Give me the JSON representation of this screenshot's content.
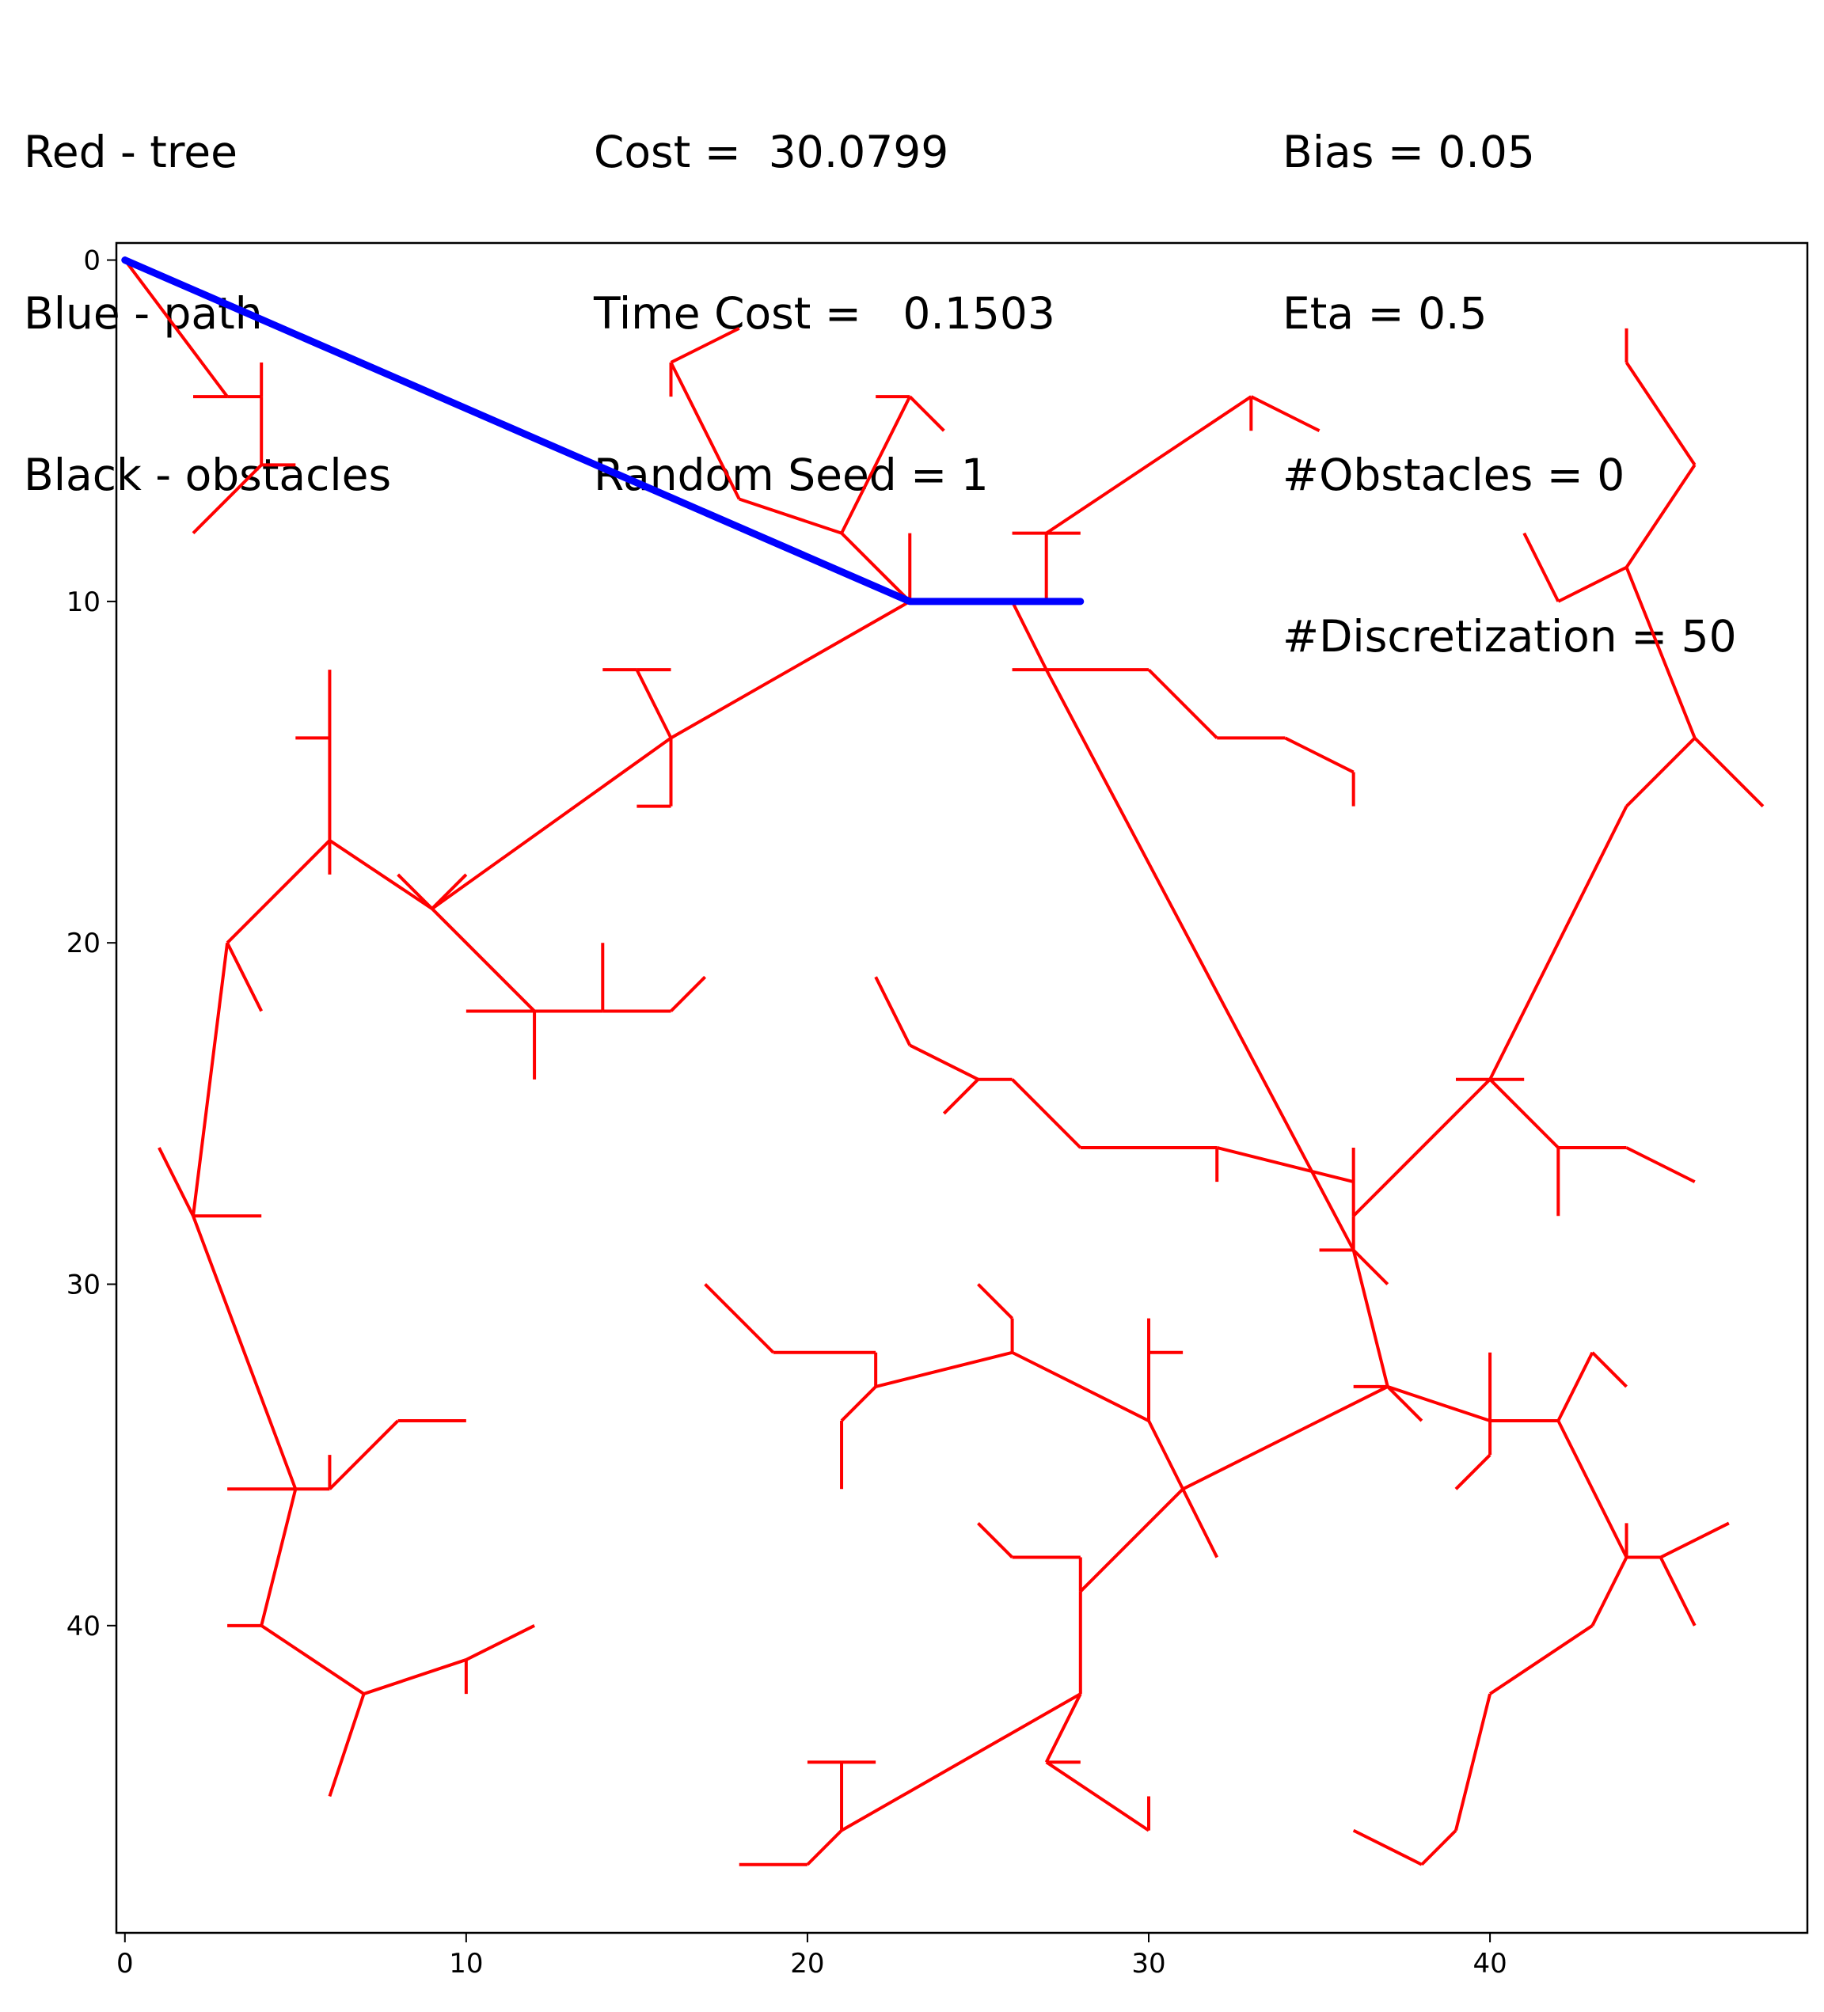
{
  "header": {
    "legend_lines": [
      "Red - tree",
      "Blue - path",
      "Black - obstacles"
    ],
    "stats_lines": [
      "Cost =  30.0799",
      "Time Cost =   0.1503",
      "Random Seed = 1"
    ],
    "params_lines": [
      "Bias = 0.05",
      "Eta = 0.5",
      "#Obstacles = 0",
      "#Discretization = 50"
    ]
  },
  "chart_data": {
    "type": "line",
    "title": "",
    "xlabel": "",
    "ylabel": "",
    "xlim": [
      -0.25,
      49.3
    ],
    "ylim": [
      49,
      -0.5
    ],
    "y_inverted": true,
    "grid": false,
    "xticks": [
      0,
      10,
      20,
      30,
      40
    ],
    "yticks": [
      0,
      10,
      20,
      30,
      40
    ],
    "colors": {
      "tree": "#ff0000",
      "path": "#0000ff",
      "obstacles": "#000000"
    },
    "obstacles": [],
    "path": [
      [
        0,
        0
      ],
      [
        23,
        10
      ],
      [
        28,
        10
      ]
    ],
    "tree_segments": [
      [
        [
          0,
          0
        ],
        [
          3,
          4
        ]
      ],
      [
        [
          3,
          4
        ],
        [
          2,
          4
        ]
      ],
      [
        [
          3,
          4
        ],
        [
          4,
          4
        ]
      ],
      [
        [
          4,
          4
        ],
        [
          4,
          3
        ]
      ],
      [
        [
          4,
          4
        ],
        [
          4,
          6
        ]
      ],
      [
        [
          4,
          6
        ],
        [
          5,
          6
        ]
      ],
      [
        [
          4,
          6
        ],
        [
          2,
          8
        ]
      ],
      [
        [
          23,
          10
        ],
        [
          21,
          8
        ]
      ],
      [
        [
          21,
          8
        ],
        [
          18,
          7
        ]
      ],
      [
        [
          18,
          7
        ],
        [
          16,
          3
        ]
      ],
      [
        [
          16,
          3
        ],
        [
          16,
          4
        ]
      ],
      [
        [
          16,
          3
        ],
        [
          18,
          2
        ]
      ],
      [
        [
          21,
          8
        ],
        [
          23,
          4
        ]
      ],
      [
        [
          23,
          4
        ],
        [
          22,
          4
        ]
      ],
      [
        [
          23,
          4
        ],
        [
          24,
          5
        ]
      ],
      [
        [
          23,
          10
        ],
        [
          23,
          8
        ]
      ],
      [
        [
          23,
          10
        ],
        [
          26,
          10
        ]
      ],
      [
        [
          26,
          10
        ],
        [
          27,
          10
        ]
      ],
      [
        [
          27,
          10
        ],
        [
          27,
          8
        ]
      ],
      [
        [
          27,
          8
        ],
        [
          26,
          8
        ]
      ],
      [
        [
          27,
          8
        ],
        [
          28,
          8
        ]
      ],
      [
        [
          27,
          8
        ],
        [
          33,
          4
        ]
      ],
      [
        [
          33,
          4
        ],
        [
          33,
          5
        ]
      ],
      [
        [
          33,
          4
        ],
        [
          35,
          5
        ]
      ],
      [
        [
          26,
          10
        ],
        [
          27,
          12
        ]
      ],
      [
        [
          27,
          12
        ],
        [
          26,
          12
        ]
      ],
      [
        [
          27,
          12
        ],
        [
          30,
          12
        ]
      ],
      [
        [
          30,
          12
        ],
        [
          32,
          14
        ]
      ],
      [
        [
          32,
          14
        ],
        [
          34,
          14
        ]
      ],
      [
        [
          34,
          14
        ],
        [
          36,
          15
        ]
      ],
      [
        [
          36,
          15
        ],
        [
          36,
          16
        ]
      ],
      [
        [
          27,
          12
        ],
        [
          36,
          29
        ]
      ],
      [
        [
          23,
          10
        ],
        [
          16,
          14
        ]
      ],
      [
        [
          16,
          14
        ],
        [
          15,
          12
        ]
      ],
      [
        [
          15,
          12
        ],
        [
          14,
          12
        ]
      ],
      [
        [
          15,
          12
        ],
        [
          16,
          12
        ]
      ],
      [
        [
          16,
          14
        ],
        [
          16,
          16
        ]
      ],
      [
        [
          16,
          16
        ],
        [
          15,
          16
        ]
      ],
      [
        [
          16,
          14
        ],
        [
          9,
          19
        ]
      ],
      [
        [
          9,
          19
        ],
        [
          8,
          18
        ]
      ],
      [
        [
          9,
          19
        ],
        [
          10,
          18
        ]
      ],
      [
        [
          9,
          19
        ],
        [
          12,
          22
        ]
      ],
      [
        [
          12,
          22
        ],
        [
          10,
          22
        ]
      ],
      [
        [
          12,
          22
        ],
        [
          12,
          24
        ]
      ],
      [
        [
          12,
          22
        ],
        [
          14,
          22
        ]
      ],
      [
        [
          14,
          22
        ],
        [
          14,
          20
        ]
      ],
      [
        [
          14,
          22
        ],
        [
          16,
          22
        ]
      ],
      [
        [
          16,
          22
        ],
        [
          17,
          21
        ]
      ],
      [
        [
          9,
          19
        ],
        [
          6,
          17
        ]
      ],
      [
        [
          6,
          17
        ],
        [
          6,
          12
        ]
      ],
      [
        [
          6,
          14
        ],
        [
          5,
          14
        ]
      ],
      [
        [
          6,
          17
        ],
        [
          6,
          18
        ]
      ],
      [
        [
          6,
          17
        ],
        [
          3,
          20
        ]
      ],
      [
        [
          3,
          20
        ],
        [
          4,
          22
        ]
      ],
      [
        [
          3,
          20
        ],
        [
          2,
          28
        ]
      ],
      [
        [
          2,
          28
        ],
        [
          1,
          26
        ]
      ],
      [
        [
          2,
          28
        ],
        [
          4,
          28
        ]
      ],
      [
        [
          2,
          28
        ],
        [
          5,
          36
        ]
      ],
      [
        [
          5,
          36
        ],
        [
          3,
          36
        ]
      ],
      [
        [
          5,
          36
        ],
        [
          6,
          36
        ]
      ],
      [
        [
          6,
          36
        ],
        [
          6,
          35
        ]
      ],
      [
        [
          6,
          36
        ],
        [
          8,
          34
        ]
      ],
      [
        [
          8,
          34
        ],
        [
          10,
          34
        ]
      ],
      [
        [
          5,
          36
        ],
        [
          4,
          40
        ]
      ],
      [
        [
          4,
          40
        ],
        [
          3,
          40
        ]
      ],
      [
        [
          4,
          40
        ],
        [
          7,
          42
        ]
      ],
      [
        [
          7,
          42
        ],
        [
          6,
          45
        ]
      ],
      [
        [
          7,
          42
        ],
        [
          10,
          41
        ]
      ],
      [
        [
          10,
          41
        ],
        [
          10,
          42
        ]
      ],
      [
        [
          10,
          41
        ],
        [
          12,
          40
        ]
      ],
      [
        [
          36,
          29
        ],
        [
          35,
          29
        ]
      ],
      [
        [
          36,
          29
        ],
        [
          37,
          30
        ]
      ],
      [
        [
          36,
          29
        ],
        [
          36,
          28
        ]
      ],
      [
        [
          36,
          28
        ],
        [
          36,
          26
        ]
      ],
      [
        [
          36,
          28
        ],
        [
          40,
          24
        ]
      ],
      [
        [
          40,
          24
        ],
        [
          39,
          24
        ]
      ],
      [
        [
          40,
          24
        ],
        [
          41,
          24
        ]
      ],
      [
        [
          40,
          24
        ],
        [
          44,
          16
        ]
      ],
      [
        [
          44,
          16
        ],
        [
          46,
          14
        ]
      ],
      [
        [
          46,
          14
        ],
        [
          48,
          16
        ]
      ],
      [
        [
          46,
          14
        ],
        [
          44,
          9
        ]
      ],
      [
        [
          44,
          9
        ],
        [
          42,
          10
        ]
      ],
      [
        [
          42,
          10
        ],
        [
          41,
          8
        ]
      ],
      [
        [
          44,
          9
        ],
        [
          46,
          6
        ]
      ],
      [
        [
          46,
          6
        ],
        [
          44,
          3
        ]
      ],
      [
        [
          44,
          3
        ],
        [
          44,
          2
        ]
      ],
      [
        [
          40,
          24
        ],
        [
          42,
          26
        ]
      ],
      [
        [
          42,
          26
        ],
        [
          42,
          28
        ]
      ],
      [
        [
          42,
          26
        ],
        [
          44,
          26
        ]
      ],
      [
        [
          44,
          26
        ],
        [
          46,
          27
        ]
      ],
      [
        [
          36,
          27
        ],
        [
          32,
          26
        ]
      ],
      [
        [
          32,
          26
        ],
        [
          32,
          27
        ]
      ],
      [
        [
          32,
          26
        ],
        [
          28,
          26
        ]
      ],
      [
        [
          28,
          26
        ],
        [
          26,
          24
        ]
      ],
      [
        [
          26,
          24
        ],
        [
          25,
          24
        ]
      ],
      [
        [
          25,
          24
        ],
        [
          24,
          25
        ]
      ],
      [
        [
          25,
          24
        ],
        [
          23,
          23
        ]
      ],
      [
        [
          23,
          23
        ],
        [
          22,
          21
        ]
      ],
      [
        [
          36,
          29
        ],
        [
          37,
          33
        ]
      ],
      [
        [
          37,
          33
        ],
        [
          36,
          33
        ]
      ],
      [
        [
          37,
          33
        ],
        [
          38,
          34
        ]
      ],
      [
        [
          37,
          33
        ],
        [
          40,
          34
        ]
      ],
      [
        [
          40,
          34
        ],
        [
          40,
          32
        ]
      ],
      [
        [
          40,
          34
        ],
        [
          40,
          35
        ]
      ],
      [
        [
          40,
          35
        ],
        [
          39,
          36
        ]
      ],
      [
        [
          40,
          34
        ],
        [
          42,
          34
        ]
      ],
      [
        [
          42,
          34
        ],
        [
          43,
          32
        ]
      ],
      [
        [
          43,
          32
        ],
        [
          44,
          33
        ]
      ],
      [
        [
          42,
          34
        ],
        [
          44,
          38
        ]
      ],
      [
        [
          44,
          38
        ],
        [
          44,
          37
        ]
      ],
      [
        [
          44,
          38
        ],
        [
          45,
          38
        ]
      ],
      [
        [
          45,
          38
        ],
        [
          46,
          40
        ]
      ],
      [
        [
          45,
          38
        ],
        [
          47,
          37
        ]
      ],
      [
        [
          44,
          38
        ],
        [
          43,
          40
        ]
      ],
      [
        [
          43,
          40
        ],
        [
          40,
          42
        ]
      ],
      [
        [
          40,
          42
        ],
        [
          39,
          46
        ]
      ],
      [
        [
          39,
          46
        ],
        [
          38,
          47
        ]
      ],
      [
        [
          38,
          47
        ],
        [
          36,
          46
        ]
      ],
      [
        [
          37,
          33
        ],
        [
          31,
          36
        ]
      ],
      [
        [
          31,
          36
        ],
        [
          30,
          34
        ]
      ],
      [
        [
          30,
          34
        ],
        [
          30,
          31
        ]
      ],
      [
        [
          30,
          32
        ],
        [
          31,
          32
        ]
      ],
      [
        [
          31,
          36
        ],
        [
          32,
          38
        ]
      ],
      [
        [
          30,
          34
        ],
        [
          26,
          32
        ]
      ],
      [
        [
          26,
          32
        ],
        [
          26,
          31
        ]
      ],
      [
        [
          26,
          31
        ],
        [
          25,
          30
        ]
      ],
      [
        [
          26,
          32
        ],
        [
          22,
          33
        ]
      ],
      [
        [
          22,
          33
        ],
        [
          22,
          32
        ]
      ],
      [
        [
          22,
          32
        ],
        [
          19,
          32
        ]
      ],
      [
        [
          19,
          32
        ],
        [
          17,
          30
        ]
      ],
      [
        [
          22,
          33
        ],
        [
          21,
          34
        ]
      ],
      [
        [
          21,
          34
        ],
        [
          21,
          36
        ]
      ],
      [
        [
          31,
          36
        ],
        [
          28,
          39
        ]
      ],
      [
        [
          28,
          39
        ],
        [
          28,
          38
        ]
      ],
      [
        [
          28,
          38
        ],
        [
          26,
          38
        ]
      ],
      [
        [
          26,
          38
        ],
        [
          25,
          37
        ]
      ],
      [
        [
          28,
          39
        ],
        [
          28,
          42
        ]
      ],
      [
        [
          28,
          42
        ],
        [
          27,
          44
        ]
      ],
      [
        [
          27,
          44
        ],
        [
          28,
          44
        ]
      ],
      [
        [
          27,
          44
        ],
        [
          30,
          46
        ]
      ],
      [
        [
          30,
          46
        ],
        [
          30,
          45
        ]
      ],
      [
        [
          28,
          42
        ],
        [
          21,
          46
        ]
      ],
      [
        [
          21,
          46
        ],
        [
          21,
          44
        ]
      ],
      [
        [
          21,
          44
        ],
        [
          20,
          44
        ]
      ],
      [
        [
          21,
          44
        ],
        [
          22,
          44
        ]
      ],
      [
        [
          21,
          46
        ],
        [
          20,
          47
        ]
      ],
      [
        [
          20,
          47
        ],
        [
          18,
          47
        ]
      ]
    ]
  }
}
